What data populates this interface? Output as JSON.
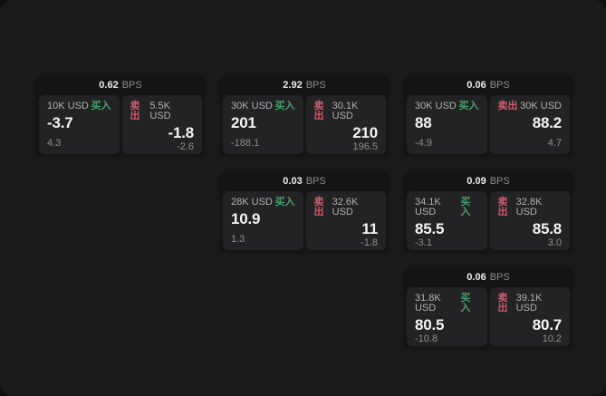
{
  "app": {
    "bps_suffix": "BPS",
    "buy_tag": "买入",
    "sell_tag": "卖出"
  },
  "colors": {
    "backdrop": "#101010",
    "surface": "#1a1a1b",
    "card": "#151515",
    "tile": "#232325",
    "green": "#45a168",
    "red": "#cd5c6c"
  },
  "cards": [
    {
      "row": 1,
      "col": 1,
      "bps": "0.62",
      "buy": {
        "size": "10K USD",
        "value": "-3.7",
        "delta": "4.3"
      },
      "sell": {
        "size": "5.5K USD",
        "value": "-1.8",
        "delta": "-2.6"
      }
    },
    {
      "row": 1,
      "col": 2,
      "bps": "2.92",
      "buy": {
        "size": "30K USD",
        "value": "201",
        "delta": "-188.1"
      },
      "sell": {
        "size": "30.1K USD",
        "value": "210",
        "delta": "196.5"
      }
    },
    {
      "row": 1,
      "col": 3,
      "bps": "0.06",
      "buy": {
        "size": "30K USD",
        "value": "88",
        "delta": "-4.9"
      },
      "sell": {
        "size": "30K USD",
        "value": "88.2",
        "delta": "4.7"
      }
    },
    {
      "row": 2,
      "col": 2,
      "bps": "0.03",
      "buy": {
        "size": "28K USD",
        "value": "10.9",
        "delta": "1.3"
      },
      "sell": {
        "size": "32.6K USD",
        "value": "11",
        "delta": "-1.8"
      }
    },
    {
      "row": 2,
      "col": 3,
      "bps": "0.09",
      "buy": {
        "size": "34.1K USD",
        "value": "85.5",
        "delta": "-3.1"
      },
      "sell": {
        "size": "32.8K USD",
        "value": "85.8",
        "delta": "3.0"
      }
    },
    {
      "row": 3,
      "col": 3,
      "bps": "0.06",
      "buy": {
        "size": "31.8K USD",
        "value": "80.5",
        "delta": "-10.8"
      },
      "sell": {
        "size": "39.1K USD",
        "value": "80.7",
        "delta": "10.2"
      }
    }
  ]
}
